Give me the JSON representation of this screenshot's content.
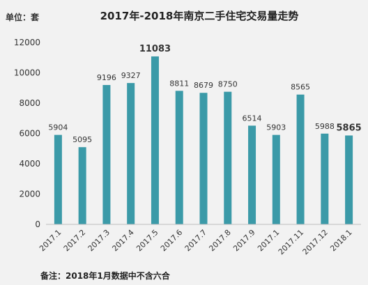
{
  "chart_data": {
    "type": "bar",
    "title": "2017年-2018年南京二手住宅交易量走势",
    "unit_label": "单位：套",
    "note": "备注：2018年1月数据中不含六合",
    "categories": [
      "2017.1",
      "2017.2",
      "2017.3",
      "2017.4",
      "2017.5",
      "2017.6",
      "2017.7",
      "2017.8",
      "2017.9",
      "2017.1",
      "2017.11",
      "2017.12",
      "2018.1"
    ],
    "values": [
      5904,
      5095,
      9196,
      9327,
      11083,
      8811,
      8679,
      8750,
      6514,
      5903,
      8565,
      5988,
      5865
    ],
    "data_labels": [
      "5904",
      "5095",
      "9196",
      "9327",
      "11083",
      "8811",
      "8679",
      "8750",
      "6514",
      "5903",
      "8565",
      "5988",
      "5865"
    ],
    "emphasized_labels": [
      4,
      12
    ],
    "yticks": [
      "0",
      "2000",
      "4000",
      "6000",
      "8000",
      "10000",
      "12000"
    ],
    "ylim": [
      0,
      12000
    ],
    "grid": false,
    "legend": "none",
    "bar_color": "#3b9aa8",
    "text_color": "#333333"
  }
}
